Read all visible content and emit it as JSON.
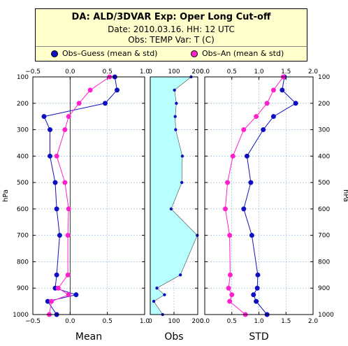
{
  "header": {
    "title": "DA: ALD/3DVAR    Exp: Oper Long Cut-off",
    "date_line": "Date: 2010.03.16.   HH: 12 UTC",
    "obs_line": "Obs: TEMP      Var: T (C)"
  },
  "legend": {
    "series1": "Obs–Guess (mean & std)",
    "series2": "Obs–An (mean & std)",
    "color1": "#1010c0",
    "color2": "#ff22cc"
  },
  "y_axis": {
    "label": "hPa",
    "ticks": [
      100,
      200,
      300,
      400,
      500,
      600,
      700,
      800,
      900,
      1000
    ],
    "tick_labels": [
      "100",
      "200",
      "300",
      "400",
      "500",
      "600",
      "700",
      "800",
      "900",
      "1000"
    ]
  },
  "chart_data": [
    {
      "type": "line",
      "title": "Mean",
      "xlim": [
        -0.5,
        1.0
      ],
      "x_ticks": [
        -0.5,
        0.0,
        0.5,
        1.0
      ],
      "x_tick_labels": [
        "−0.5",
        "0.0",
        "0.5",
        "1.0"
      ],
      "y": [
        100,
        150,
        200,
        250,
        300,
        400,
        500,
        600,
        700,
        850,
        900,
        925,
        950,
        1000
      ],
      "series": [
        {
          "name": "Obs–Guess (mean & std)",
          "values": [
            0.6,
            0.63,
            0.47,
            -0.35,
            -0.27,
            -0.27,
            -0.2,
            -0.18,
            -0.14,
            -0.18,
            -0.2,
            0.08,
            -0.3,
            -0.18
          ]
        },
        {
          "name": "Obs–An (mean & std)",
          "values": [
            0.53,
            0.27,
            0.12,
            -0.02,
            -0.07,
            -0.18,
            -0.07,
            -0.02,
            -0.03,
            -0.03,
            -0.16,
            -0.02,
            -0.25,
            -0.28
          ]
        }
      ]
    },
    {
      "type": "area",
      "title": "Obs",
      "xlim": [
        0,
        200
      ],
      "x_ticks": [
        0,
        100,
        200
      ],
      "x_tick_labels": [
        "0",
        "100",
        "200"
      ],
      "y": [
        100,
        150,
        200,
        250,
        300,
        400,
        500,
        600,
        700,
        850,
        900,
        925,
        950,
        1000
      ],
      "values": [
        172,
        102,
        110,
        105,
        107,
        135,
        133,
        88,
        198,
        127,
        28,
        60,
        15,
        52
      ]
    },
    {
      "type": "line",
      "title": "STD",
      "xlim": [
        0.0,
        2.0
      ],
      "x_ticks": [
        0.0,
        0.5,
        1.0,
        1.5,
        2.0
      ],
      "x_tick_labels": [
        "0.0",
        "0.5",
        "1.0",
        "1.5",
        "2.0"
      ],
      "y": [
        100,
        150,
        200,
        250,
        300,
        400,
        500,
        600,
        700,
        850,
        900,
        925,
        950,
        1000
      ],
      "series": [
        {
          "name": "Obs–Guess (mean & std)",
          "values": [
            1.47,
            1.43,
            1.68,
            1.27,
            1.08,
            0.78,
            0.85,
            0.72,
            0.87,
            0.98,
            0.97,
            0.9,
            0.95,
            1.15
          ]
        },
        {
          "name": "Obs–An (mean & std)",
          "values": [
            1.45,
            1.27,
            1.15,
            0.95,
            0.72,
            0.52,
            0.42,
            0.38,
            0.46,
            0.47,
            0.44,
            0.5,
            0.46,
            0.75
          ]
        }
      ]
    }
  ]
}
